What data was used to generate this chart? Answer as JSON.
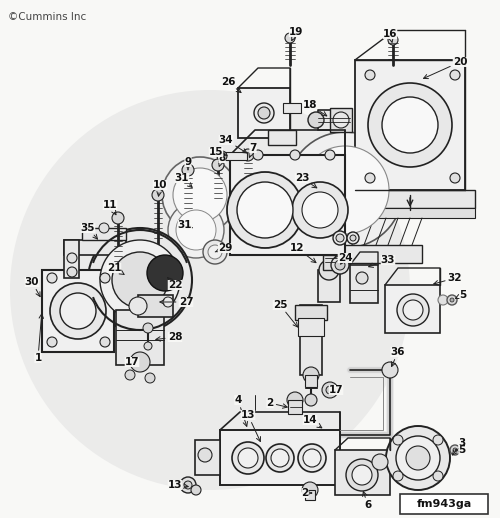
{
  "copyright_text": "©Cummins Inc",
  "figure_id": "fm943ga",
  "bg_color": "#f8f8f6",
  "circle_bg_color": "#e8e8e6",
  "line_color": "#222222",
  "label_color": "#111111",
  "fig_width": 5.0,
  "fig_height": 5.18,
  "dpi": 100
}
